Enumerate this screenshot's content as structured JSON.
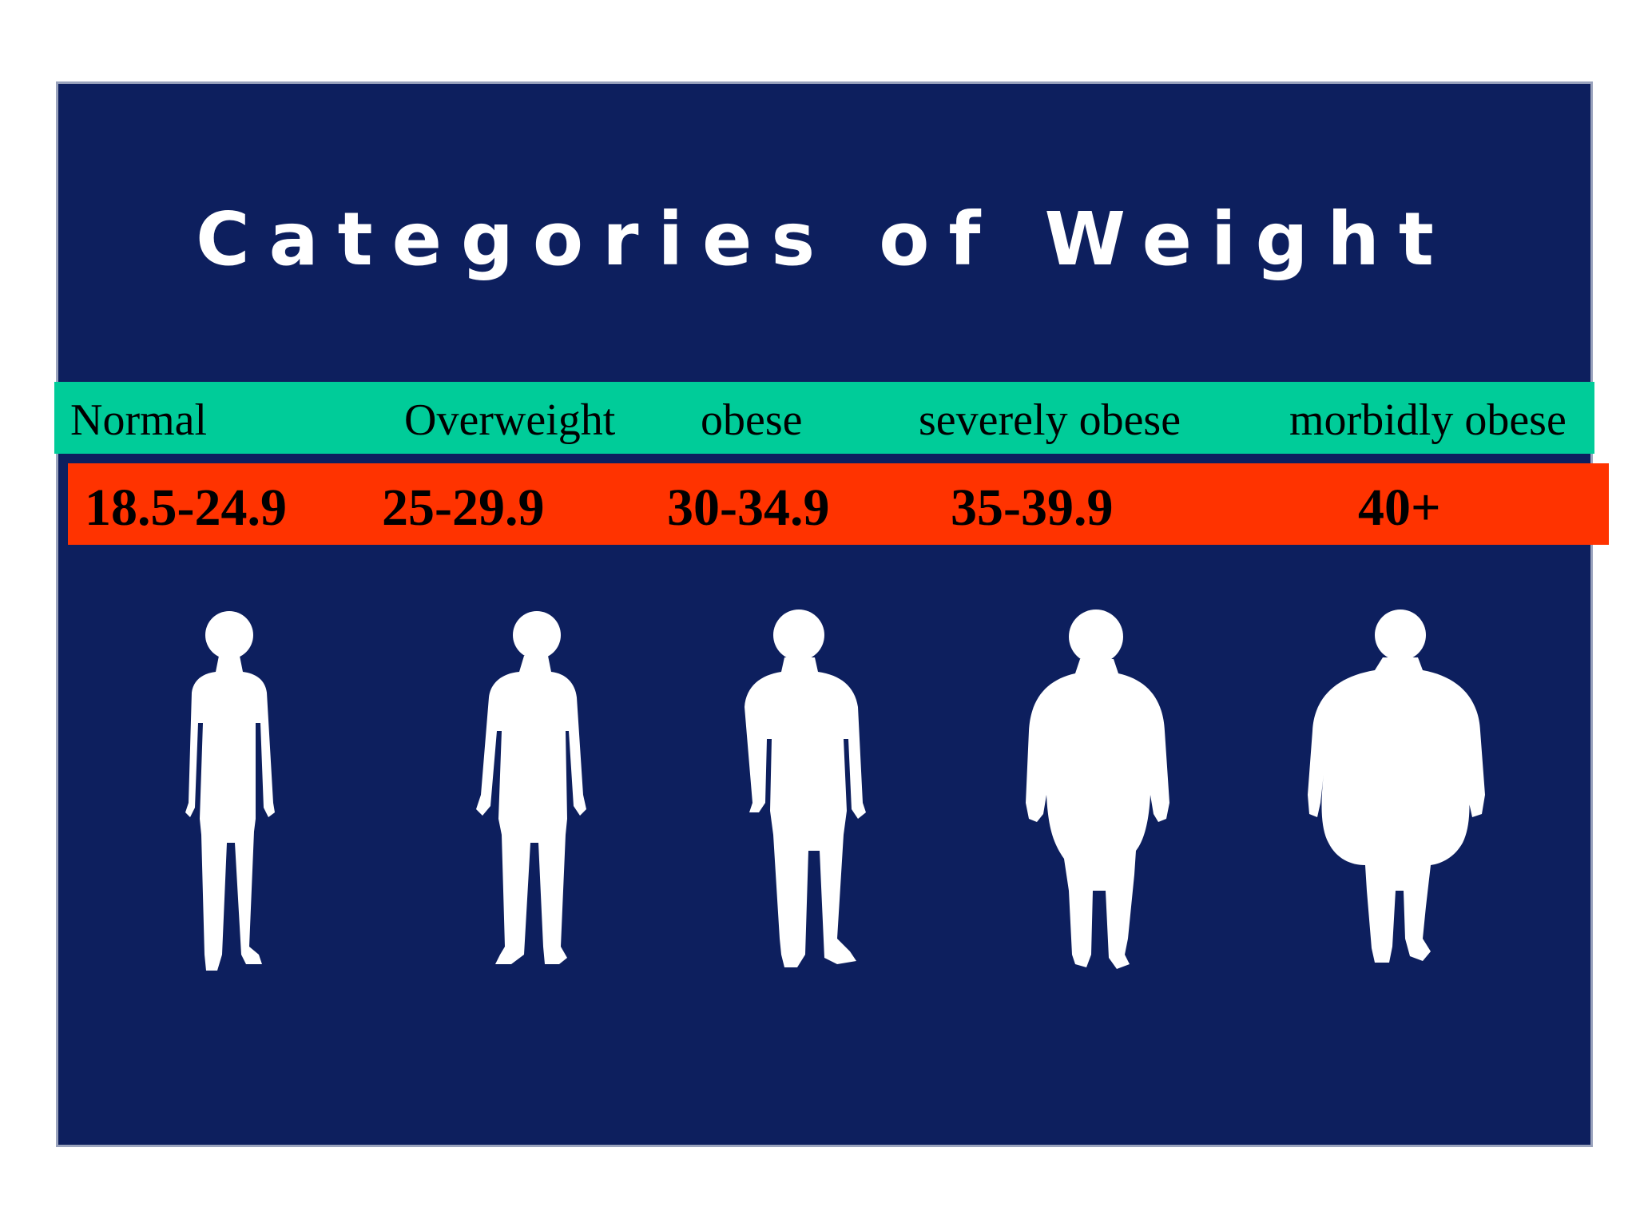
{
  "title": "Categories of Weight",
  "categories": [
    {
      "label": "Normal",
      "range": "18.5-24.9",
      "figure_icon": "normal-weight-person-icon"
    },
    {
      "label": "Overweight",
      "range": "25-29.9",
      "figure_icon": "overweight-person-icon"
    },
    {
      "label": "obese",
      "range": "30-34.9",
      "figure_icon": "obese-person-icon"
    },
    {
      "label": "severely obese",
      "range": "35-39.9",
      "figure_icon": "severely-obese-person-icon"
    },
    {
      "label": "morbidly obese",
      "range": "40+",
      "figure_icon": "morbidly-obese-person-icon"
    }
  ],
  "colors": {
    "background": "#0d1f5e",
    "category_band": "#00cc99",
    "range_band": "#ff3300",
    "figure": "#ffffff"
  }
}
